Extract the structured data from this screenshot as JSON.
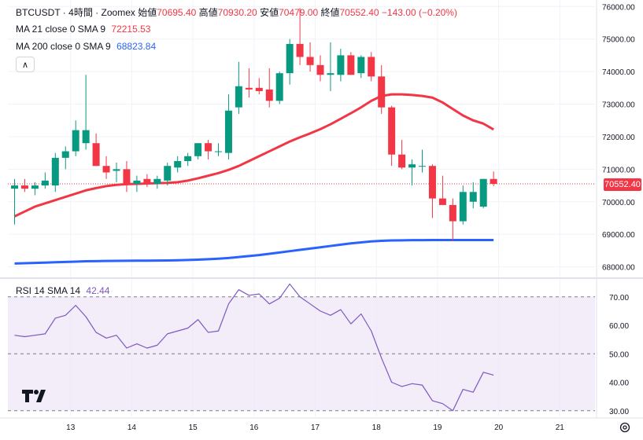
{
  "legend": {
    "symbol": "BTCUSDT",
    "sep1": "·",
    "interval": "4時間",
    "sep2": "·",
    "exchange": "Zoomex",
    "open_label": "始値",
    "open": "70695.40",
    "high_label": "高値",
    "high": "70930.20",
    "low_label": "安値",
    "low": "70479.00",
    "close_label": "終値",
    "close": "70552.40",
    "change": "−143.00 (−0.20%)"
  },
  "ma21": {
    "label": "MA 21 close 0 SMA 9",
    "value": "72215.53",
    "color": "#f23645"
  },
  "ma200": {
    "label": "MA 200 close 0 SMA 9",
    "value": "68823.84",
    "color": "#2962ff"
  },
  "rsi": {
    "label": "RSI 14 SMA 14",
    "value": "42.44",
    "color": "#7e57c2"
  },
  "last_price_tag": "70552.40",
  "colors": {
    "up": "#089981",
    "down": "#f23645",
    "grid": "#f0f3fa",
    "rsi_band": "#ede7f6"
  },
  "chart_data": [
    {
      "type": "candlestick",
      "title": "BTCUSDT · 4時間 · Zoomex",
      "xlabel": "",
      "ylabel": "",
      "ylim": [
        67700,
        76200
      ],
      "y_ticks": [
        68000,
        69000,
        70000,
        71000,
        72000,
        73000,
        74000,
        75000,
        76000
      ],
      "y_tick_labels": [
        "68000.00",
        "69000.00",
        "70000.00",
        "71000.00",
        "72000.00",
        "73000.00",
        "74000.00",
        "75000.00",
        "76000.00"
      ],
      "x_ticks": [
        "13",
        "14",
        "15",
        "16",
        "17",
        "18",
        "19",
        "20",
        "21"
      ],
      "x_tick_index": [
        5.5,
        11.5,
        17.5,
        23.5,
        29.5,
        35.5,
        41.5,
        47.5,
        53.5
      ],
      "candles": [
        {
          "o": 70400,
          "h": 70700,
          "l": 69300,
          "c": 70500
        },
        {
          "o": 70500,
          "h": 70700,
          "l": 70300,
          "c": 70400
        },
        {
          "o": 70400,
          "h": 70600,
          "l": 70200,
          "c": 70500
        },
        {
          "o": 70500,
          "h": 70900,
          "l": 70400,
          "c": 70650
        },
        {
          "o": 70500,
          "h": 71500,
          "l": 70300,
          "c": 71350
        },
        {
          "o": 71350,
          "h": 71700,
          "l": 71000,
          "c": 71550
        },
        {
          "o": 71550,
          "h": 72500,
          "l": 71400,
          "c": 72200
        },
        {
          "o": 71800,
          "h": 73900,
          "l": 71600,
          "c": 72200
        },
        {
          "o": 71800,
          "h": 72100,
          "l": 71100,
          "c": 71100
        },
        {
          "o": 71100,
          "h": 71400,
          "l": 70700,
          "c": 70900
        },
        {
          "o": 70950,
          "h": 71200,
          "l": 70600,
          "c": 71000
        },
        {
          "o": 71000,
          "h": 71250,
          "l": 70300,
          "c": 70550
        },
        {
          "o": 70550,
          "h": 70800,
          "l": 70300,
          "c": 70650
        },
        {
          "o": 70700,
          "h": 70850,
          "l": 70450,
          "c": 70550
        },
        {
          "o": 70550,
          "h": 70800,
          "l": 70400,
          "c": 70700
        },
        {
          "o": 70650,
          "h": 71200,
          "l": 70500,
          "c": 71100
        },
        {
          "o": 71050,
          "h": 71400,
          "l": 70900,
          "c": 71250
        },
        {
          "o": 71250,
          "h": 71500,
          "l": 71100,
          "c": 71400
        },
        {
          "o": 71400,
          "h": 71800,
          "l": 71300,
          "c": 71800
        },
        {
          "o": 71800,
          "h": 71900,
          "l": 71300,
          "c": 71550
        },
        {
          "o": 71550,
          "h": 71800,
          "l": 71400,
          "c": 71550
        },
        {
          "o": 71500,
          "h": 73300,
          "l": 71300,
          "c": 72800
        },
        {
          "o": 72900,
          "h": 74300,
          "l": 72700,
          "c": 73550
        },
        {
          "o": 73500,
          "h": 74100,
          "l": 73200,
          "c": 73450
        },
        {
          "o": 73500,
          "h": 73800,
          "l": 73300,
          "c": 73400
        },
        {
          "o": 73450,
          "h": 74100,
          "l": 72900,
          "c": 73100
        },
        {
          "o": 73100,
          "h": 74000,
          "l": 73000,
          "c": 73950
        },
        {
          "o": 73950,
          "h": 75000,
          "l": 73600,
          "c": 74850
        },
        {
          "o": 74850,
          "h": 75950,
          "l": 74200,
          "c": 74450
        },
        {
          "o": 74450,
          "h": 74900,
          "l": 74000,
          "c": 74200
        },
        {
          "o": 74200,
          "h": 74500,
          "l": 73700,
          "c": 73900
        },
        {
          "o": 73900,
          "h": 74900,
          "l": 73400,
          "c": 73950
        },
        {
          "o": 73900,
          "h": 74700,
          "l": 73700,
          "c": 74500
        },
        {
          "o": 74500,
          "h": 74600,
          "l": 73900,
          "c": 73900
        },
        {
          "o": 73950,
          "h": 74500,
          "l": 73800,
          "c": 74450
        },
        {
          "o": 74450,
          "h": 74600,
          "l": 73700,
          "c": 73850
        },
        {
          "o": 73850,
          "h": 74200,
          "l": 72700,
          "c": 72900
        },
        {
          "o": 72900,
          "h": 72950,
          "l": 71100,
          "c": 71450
        },
        {
          "o": 71450,
          "h": 71900,
          "l": 71000,
          "c": 71050
        },
        {
          "o": 71050,
          "h": 71300,
          "l": 70500,
          "c": 71150
        },
        {
          "o": 71100,
          "h": 71600,
          "l": 70900,
          "c": 71100
        },
        {
          "o": 71100,
          "h": 71150,
          "l": 69500,
          "c": 70100
        },
        {
          "o": 70100,
          "h": 70800,
          "l": 69900,
          "c": 69900
        },
        {
          "o": 69900,
          "h": 70100,
          "l": 68800,
          "c": 69400
        },
        {
          "o": 69400,
          "h": 70500,
          "l": 69300,
          "c": 70300
        },
        {
          "o": 70000,
          "h": 70600,
          "l": 69800,
          "c": 70300
        },
        {
          "o": 69850,
          "h": 70700,
          "l": 69800,
          "c": 70700
        },
        {
          "o": 70700,
          "h": 70930,
          "l": 70480,
          "c": 70550
        }
      ],
      "ma21": [
        69550,
        69700,
        69850,
        69950,
        70050,
        70150,
        70250,
        70350,
        70420,
        70480,
        70520,
        70540,
        70550,
        70560,
        70570,
        70580,
        70600,
        70650,
        70720,
        70800,
        70880,
        70980,
        71100,
        71250,
        71400,
        71550,
        71700,
        71850,
        71980,
        72100,
        72230,
        72380,
        72550,
        72720,
        72900,
        73100,
        73250,
        73300,
        73300,
        73280,
        73250,
        73200,
        73050,
        72850,
        72650,
        72500,
        72400,
        72220
      ],
      "ma200": [
        68100,
        68110,
        68120,
        68130,
        68140,
        68150,
        68160,
        68170,
        68175,
        68180,
        68182,
        68185,
        68188,
        68190,
        68192,
        68195,
        68200,
        68210,
        68220,
        68235,
        68250,
        68270,
        68300,
        68330,
        68360,
        68400,
        68440,
        68480,
        68520,
        68560,
        68600,
        68640,
        68680,
        68720,
        68750,
        68780,
        68800,
        68810,
        68815,
        68820,
        68820,
        68822,
        68823,
        68823,
        68823,
        68823,
        68823,
        68823
      ],
      "series": [
        {
          "name": "MA 21 close 0 SMA 9",
          "color": "#f23645"
        },
        {
          "name": "MA 200 close 0 SMA 9",
          "color": "#2962ff"
        }
      ]
    },
    {
      "type": "line",
      "title": "RSI 14 SMA 14",
      "ylim": [
        28,
        76
      ],
      "y_ticks": [
        30,
        40,
        50,
        60,
        70
      ],
      "y_tick_labels": [
        "30.00",
        "40.00",
        "50.00",
        "60.00",
        "70.00"
      ],
      "band": [
        30,
        70
      ],
      "values": [
        56.5,
        56,
        56.5,
        57,
        62.5,
        63.5,
        67,
        63,
        57.5,
        55.5,
        56.5,
        52,
        53.5,
        52,
        53,
        57,
        58,
        59,
        62,
        57.5,
        58,
        67.5,
        72.5,
        70.5,
        71,
        67.5,
        69.5,
        74.5,
        70,
        67.5,
        65,
        63.5,
        65.5,
        60.5,
        64,
        58,
        48.5,
        40,
        38.5,
        39.5,
        39,
        33.5,
        32.5,
        30,
        37.5,
        36.5,
        43.5,
        42.5
      ],
      "series": [
        {
          "name": "RSI 14 SMA 14",
          "color": "#7e57c2"
        }
      ]
    }
  ]
}
